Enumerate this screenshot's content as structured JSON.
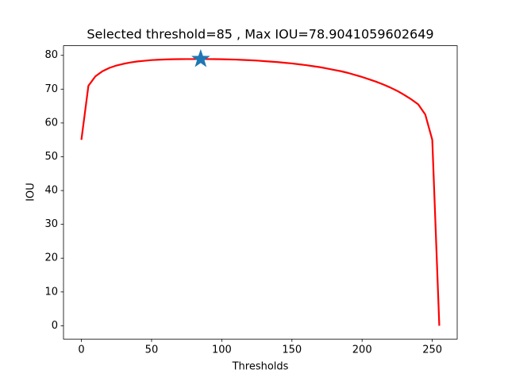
{
  "chart_data": {
    "type": "line",
    "title": "Selected threshold=85 , Max IOU=78.9041059602649",
    "xlabel": "Thresholds",
    "ylabel": "IOU",
    "x": [
      0,
      5,
      10,
      15,
      20,
      25,
      30,
      35,
      40,
      45,
      50,
      55,
      60,
      65,
      70,
      75,
      80,
      85,
      90,
      95,
      100,
      105,
      110,
      115,
      120,
      125,
      130,
      135,
      140,
      145,
      150,
      155,
      160,
      165,
      170,
      175,
      180,
      185,
      190,
      195,
      200,
      205,
      210,
      215,
      220,
      225,
      230,
      235,
      240,
      245,
      250,
      255
    ],
    "series": [
      {
        "color": "#ff0000",
        "values": [
          55,
          71,
          73.8,
          75.3,
          76.3,
          77,
          77.5,
          77.9,
          78.2,
          78.4,
          78.6,
          78.7,
          78.8,
          78.85,
          78.88,
          78.9,
          78.9,
          78.9,
          78.9,
          78.88,
          78.85,
          78.8,
          78.75,
          78.65,
          78.55,
          78.45,
          78.3,
          78.15,
          78.0,
          77.8,
          77.6,
          77.35,
          77.1,
          76.8,
          76.5,
          76.1,
          75.7,
          75.3,
          74.8,
          74.2,
          73.6,
          72.9,
          72.2,
          71.4,
          70.5,
          69.5,
          68.3,
          67,
          65.5,
          62.5,
          55,
          0
        ]
      }
    ],
    "marker": {
      "x": 85,
      "y": 78.9041059602649,
      "color": "#1f77b4",
      "shape": "star"
    },
    "xlim": [
      -12.75,
      267.75
    ],
    "ylim": [
      -3.945,
      82.85
    ],
    "xticks": [
      0,
      50,
      100,
      150,
      200,
      250
    ],
    "yticks": [
      0,
      10,
      20,
      30,
      40,
      50,
      60,
      70,
      80
    ]
  }
}
